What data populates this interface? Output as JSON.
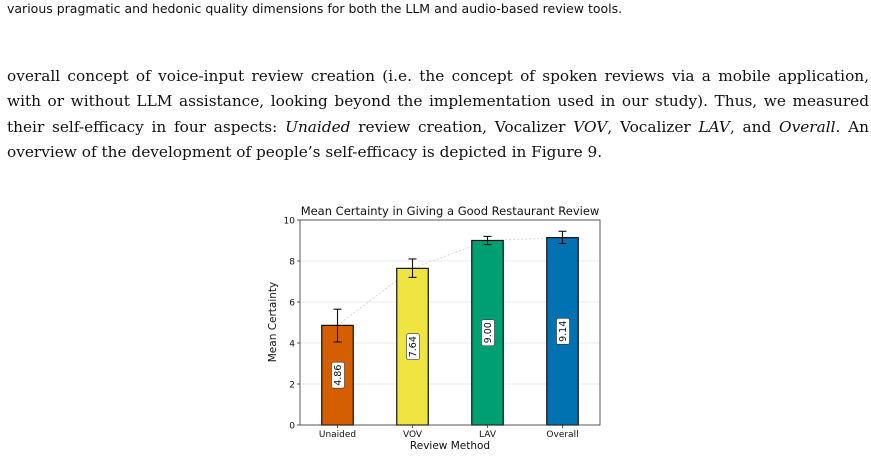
{
  "caption_tail": "various pragmatic and hedonic quality dimensions for both the LLM and audio-based review tools.",
  "paragraph": {
    "text_1": "overall concept of voice-input review creation (i.e. the concept of spoken reviews via a mobile application, with or without LLM assistance, looking beyond the implementation used in our study). Thus, we measured their self-efficacy in four aspects: ",
    "em_1": "Unaided",
    "text_2": " review creation, Vocalizer ",
    "em_2": "VOV",
    "text_3": ", Vocalizer ",
    "em_3": "LAV",
    "text_4": ", and ",
    "em_4": "Overall",
    "text_5": ". An overview of the development of people’s self-efficacy is depicted in Figure 9."
  },
  "chart_data": {
    "type": "bar",
    "title": "Mean Certainty in Giving a Good Restaurant Review",
    "xlabel": "Review Method",
    "ylabel": "Mean Certainty",
    "categories": [
      "Unaided",
      "VOV",
      "LAV",
      "Overall"
    ],
    "values": [
      4.86,
      7.64,
      9.0,
      9.14
    ],
    "value_labels": [
      "4.86",
      "7.64",
      "9.00",
      "9.14"
    ],
    "error_lower": [
      4.05,
      7.2,
      8.8,
      8.85
    ],
    "error_upper": [
      5.65,
      8.1,
      9.2,
      9.45
    ],
    "colors": [
      "#d55e00",
      "#f0e442",
      "#009e73",
      "#0072b2"
    ],
    "ylim": [
      0,
      10
    ],
    "yticks": [
      0,
      2,
      4,
      6,
      8,
      10
    ],
    "grid": true,
    "trend_line": true
  }
}
